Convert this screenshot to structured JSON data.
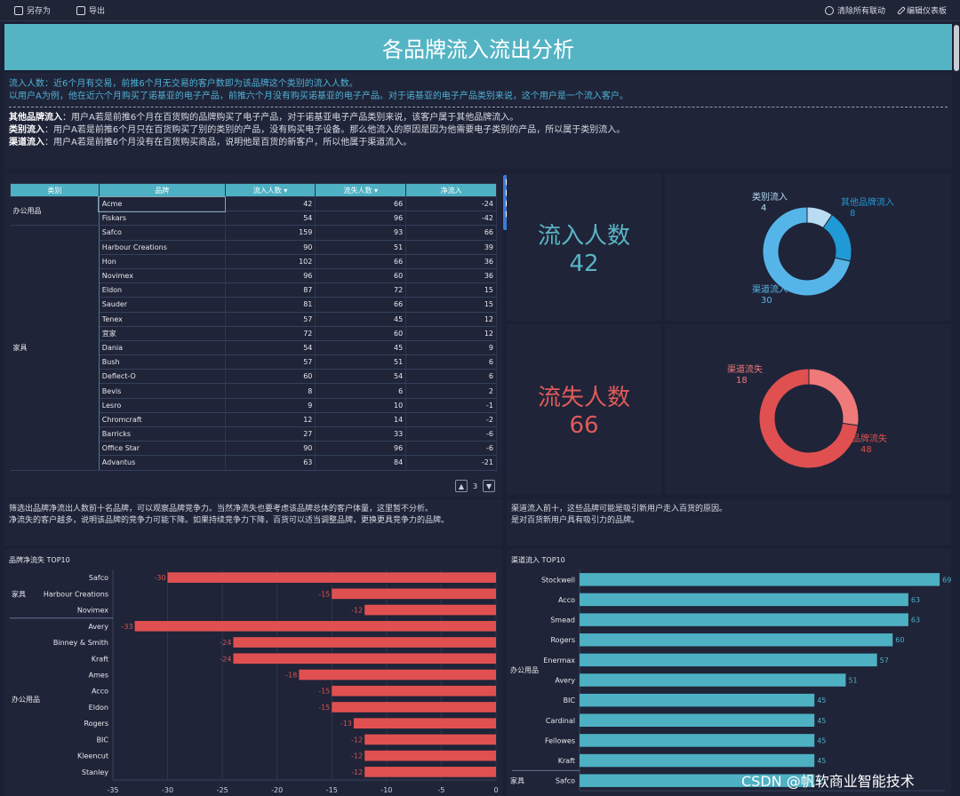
{
  "toolbar": {
    "save_as": "另存为",
    "export": "导出",
    "clear_linkage": "清除所有联动",
    "edit_dashboard": "编辑仪表板"
  },
  "title": "各品牌流入流出分析",
  "description": {
    "line1": "流入人数：近6个月有交易，前推6个月无交易的客户数即为该品牌这个类别的流入人数。",
    "line2": "以用户A为例，他在近六个月购买了诺基亚的电子产品，前推六个月没有购买诺基亚的电子产品。对于诺基亚的电子产品类别来说，这个用户是一个流入客户。",
    "brand_label": "其他品牌流入",
    "brand_text": "：用户A若是前推6个月在百货购的品牌购买了电子产品，对于诺基亚电子产品类别来说，该客户属于其他品牌流入。",
    "category_label": "类别流入",
    "category_text": "：用户A若是前推6个月只在百货购买了别的类别的产品，没有购买电子设备。那么他流入的原因是因为他需要电子类别的产品，所以属于类别流入。",
    "channel_label": "渠道流入",
    "channel_text": "：用户A若是前推6个月没有在百货购买商品，说明他是百货的新客户，所以他属于渠道流入。"
  },
  "table": {
    "headers": [
      "类别",
      "品牌",
      "流入人数",
      "流失人数",
      "净流入"
    ],
    "categories": [
      "办公用品",
      "家具"
    ],
    "rows": [
      {
        "brand": "Acme",
        "in": "42",
        "out": "66",
        "net": "-24"
      },
      {
        "brand": "Fiskars",
        "in": "54",
        "out": "96",
        "net": "-42"
      },
      {
        "brand": "Safco",
        "in": "159",
        "out": "93",
        "net": "66"
      },
      {
        "brand": "Harbour Creations",
        "in": "90",
        "out": "51",
        "net": "39"
      },
      {
        "brand": "Hon",
        "in": "102",
        "out": "66",
        "net": "36"
      },
      {
        "brand": "Novimex",
        "in": "96",
        "out": "60",
        "net": "36"
      },
      {
        "brand": "Eldon",
        "in": "87",
        "out": "72",
        "net": "15"
      },
      {
        "brand": "Sauder",
        "in": "81",
        "out": "66",
        "net": "15"
      },
      {
        "brand": "Tenex",
        "in": "57",
        "out": "45",
        "net": "12"
      },
      {
        "brand": "宜家",
        "in": "72",
        "out": "60",
        "net": "12"
      },
      {
        "brand": "Dania",
        "in": "54",
        "out": "45",
        "net": "9"
      },
      {
        "brand": "Bush",
        "in": "57",
        "out": "51",
        "net": "6"
      },
      {
        "brand": "Deflect-O",
        "in": "60",
        "out": "54",
        "net": "6"
      },
      {
        "brand": "Bevis",
        "in": "8",
        "out": "6",
        "net": "2"
      },
      {
        "brand": "Lesro",
        "in": "9",
        "out": "10",
        "net": "-1"
      },
      {
        "brand": "Chromcraft",
        "in": "12",
        "out": "14",
        "net": "-2"
      },
      {
        "brand": "Barricks",
        "in": "27",
        "out": "33",
        "net": "-6"
      },
      {
        "brand": "Office Star",
        "in": "90",
        "out": "96",
        "net": "-6"
      },
      {
        "brand": "Advantus",
        "in": "63",
        "out": "84",
        "net": "-21"
      }
    ],
    "page": "3"
  },
  "kpi": {
    "inflow_label": "流入人数",
    "inflow_value": "42",
    "outflow_label": "流失人数",
    "outflow_value": "66",
    "colors": {
      "inflow": "#5ab4c4",
      "outflow": "#e05a5a"
    }
  },
  "notes": {
    "left_line1": "筛选出品牌净流出人数前十名品牌，可以观察品牌竞争力。当然净流失也要考虑该品牌总体的客户体量，这里暂不分析。",
    "left_line2": "净流失的客户越多，说明该品牌的竞争力可能下降。如果持续竞争力下降，百货可以适当调整品牌，更换更具竞争力的品牌。",
    "right_line1": "渠道流入前十，这些品牌可能是吸引新用户走入百货的原因。",
    "right_line2": "是对百货新用户具有吸引力的品牌。"
  },
  "watermark": "CSDN @帆软商业智能技术",
  "chart_data": [
    {
      "type": "pie",
      "labels": [
        "类别流入",
        "其他品牌流入",
        "渠道流入"
      ],
      "values": [
        4,
        8,
        30
      ],
      "colors": [
        "#b9dcf2",
        "#1f9ad6",
        "#56b5e8"
      ]
    },
    {
      "type": "pie",
      "labels": [
        "渠道流失",
        "品牌流失"
      ],
      "values": [
        18,
        48
      ],
      "colors": [
        "#f07a7a",
        "#e05050"
      ]
    },
    {
      "type": "bar",
      "title": "品牌净流失 TOP10",
      "orientation": "horizontal",
      "groups": [
        {
          "name": "家具",
          "categories": [
            "Safco",
            "Harbour Creations",
            "Novimex"
          ],
          "values": [
            -30,
            -15,
            -12
          ]
        },
        {
          "name": "办公用品",
          "categories": [
            "Avery",
            "Binney & Smith",
            "Kraft",
            "Ames",
            "Acco",
            "Eldon",
            "Rogers",
            "BIC",
            "Kleencut",
            "Stanley"
          ],
          "values": [
            -33,
            -24,
            -24,
            -18,
            -15,
            -15,
            -13,
            -12,
            -12,
            -12
          ]
        }
      ],
      "xlim": [
        -35,
        0
      ],
      "xticks": [
        "-35",
        "-30",
        "-25",
        "-20",
        "-15",
        "-10",
        "-5",
        "0"
      ],
      "color": "#e05050"
    },
    {
      "type": "bar",
      "title": "渠道流入 TOP10",
      "orientation": "horizontal",
      "groups": [
        {
          "name": "办公用品",
          "categories": [
            "Stockwell",
            "Acco",
            "Smead",
            "Rogers",
            "Enermax",
            "Avery",
            "BIC",
            "Cardinal",
            "Fellowes",
            "Kraft"
          ],
          "values": [
            69,
            63,
            63,
            60,
            57,
            51,
            45,
            45,
            45,
            45
          ]
        },
        {
          "name": "家具",
          "categories": [
            "Safco"
          ],
          "values": [
            45
          ]
        }
      ],
      "xlim": [
        0,
        70
      ],
      "color": "#4db0c3"
    }
  ]
}
